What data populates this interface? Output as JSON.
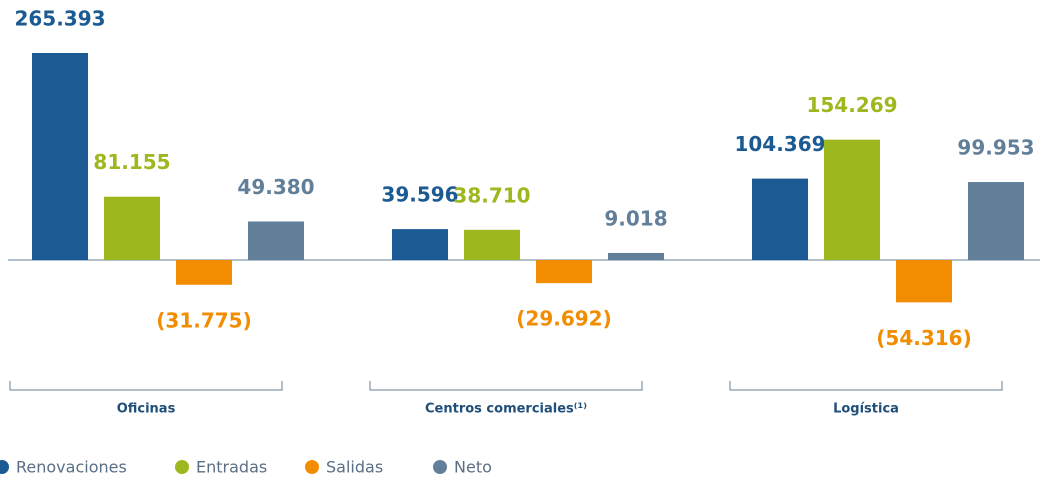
{
  "chart_data": {
    "type": "bar",
    "categories": [
      "Oficinas",
      "Centros comerciales⁽¹⁾",
      "Logística"
    ],
    "series": [
      {
        "name": "Renovaciones",
        "color": "#1b5a92",
        "values": [
          265393,
          39596,
          104369
        ],
        "value_labels": [
          "265.393",
          "39.596",
          "104.369"
        ]
      },
      {
        "name": "Entradas",
        "color": "#9db81f",
        "values": [
          81155,
          38710,
          154269
        ],
        "value_labels": [
          "81.155",
          "38.710",
          "154.269"
        ]
      },
      {
        "name": "Salidas",
        "color": "#f28c00",
        "values": [
          -31775,
          -29692,
          -54316
        ],
        "value_labels": [
          "(31.775)",
          "(29.692)",
          "(54.316)"
        ]
      },
      {
        "name": "Neto",
        "color": "#627f9a",
        "values": [
          49380,
          9018,
          99953
        ],
        "value_labels": [
          "49.380",
          "9.018",
          "99.953"
        ]
      }
    ],
    "legend": "bottom-left"
  }
}
